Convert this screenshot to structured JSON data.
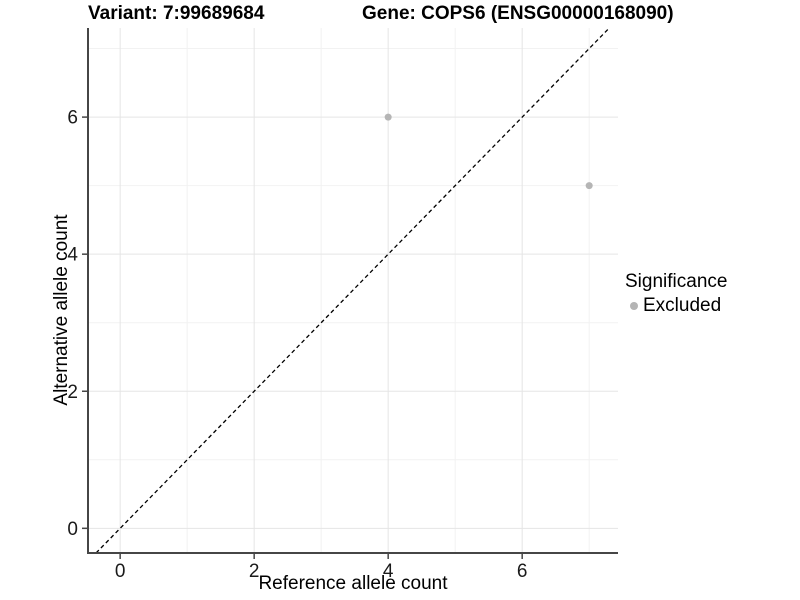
{
  "titles": {
    "variant": "Variant: 7:99689684",
    "gene": "Gene: COPS6 (ENSG00000168090)"
  },
  "legend": {
    "title": "Significance",
    "entries": [
      {
        "label": "Excluded",
        "color": "#b5b5b5"
      }
    ]
  },
  "chart_data": {
    "type": "scatter",
    "title_left": "Variant: 7:99689684",
    "title_right": "Gene: COPS6 (ENSG00000168090)",
    "xlabel": "Reference allele count",
    "ylabel": "Alternative allele count",
    "xlim": [
      -0.48,
      7.43
    ],
    "ylim": [
      -0.36,
      7.3
    ],
    "x_ticks": [
      0,
      2,
      4,
      6
    ],
    "y_ticks": [
      0,
      2,
      4,
      6
    ],
    "x_minor_ticks": [
      1,
      3,
      5,
      7
    ],
    "y_minor_ticks": [
      1,
      3,
      5,
      7
    ],
    "grid": true,
    "legend_position": "right",
    "series": [
      {
        "name": "Excluded",
        "color": "#b5b5b5",
        "points": [
          {
            "x": 4,
            "y": 6
          },
          {
            "x": 7,
            "y": 5
          }
        ]
      }
    ],
    "reference_line": {
      "type": "identity",
      "style": "dashed",
      "color": "#000000"
    }
  },
  "style_colors": {
    "grid_major": "#e5e5e5",
    "grid_minor": "#f2f2f2",
    "axis_line": "#464646",
    "tick_label": "#1a1a1a"
  }
}
